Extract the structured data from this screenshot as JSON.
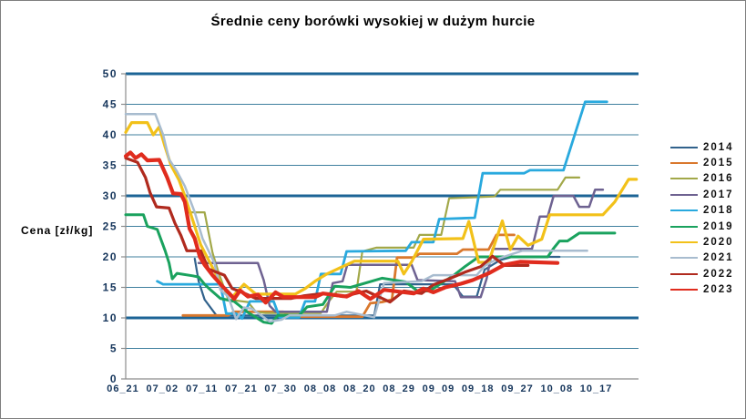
{
  "title": "Średnie ceny borówki wysokiej w dużym hurcie",
  "y_axis_label": "Cena [zł/kg]",
  "frame_border_color": "#7f7f7f",
  "chart_data": {
    "type": "line",
    "title": "Średnie ceny borówki wysokiej w dużym hurcie",
    "xlabel": "",
    "ylabel": "Cena [zł/kg]",
    "ylim": [
      0,
      50
    ],
    "y_tick_step": 5,
    "y_ticks": [
      0,
      5,
      10,
      15,
      20,
      25,
      30,
      35,
      40,
      45,
      50
    ],
    "y_major_gridlines": [
      10,
      30,
      50
    ],
    "y_minor_gridlines": [
      5,
      15,
      20,
      25,
      35,
      40,
      45
    ],
    "grid": "horizontal",
    "legend_position": "right",
    "axis_color": "#8c8c8c",
    "major_grid_color": "#1c6496",
    "minor_grid_color": "#3f7f9e",
    "tick_label_color": "#16365c",
    "categories": [
      "06_21",
      "07_02",
      "07_11",
      "07_21",
      "07_30",
      "08_08",
      "08_20",
      "08_29",
      "09_09",
      "09_18",
      "09_27",
      "10_08",
      "10_17"
    ],
    "x_unit": "category-index (fractional positions between the 13 date labels)",
    "series": [
      {
        "name": "2014",
        "color": "#31628c",
        "width": 2.2,
        "points": [
          [
            1.75,
            19.7
          ],
          [
            1.85,
            16
          ],
          [
            2.0,
            13
          ],
          [
            2.3,
            10.4
          ],
          [
            6.3,
            10.4
          ],
          [
            6.45,
            15.5
          ],
          [
            8.3,
            15.5
          ],
          [
            8.55,
            13.5
          ],
          [
            8.9,
            13.5
          ],
          [
            9.1,
            17.9
          ],
          [
            9.5,
            19.5
          ],
          [
            9.8,
            20
          ],
          [
            11.0,
            20
          ]
        ]
      },
      {
        "name": "2015",
        "color": "#d9782d",
        "width": 2.8,
        "points": [
          [
            1.45,
            10.4
          ],
          [
            2.6,
            10.4
          ],
          [
            2.75,
            11
          ],
          [
            4.0,
            11
          ],
          [
            4.15,
            10.2
          ],
          [
            6.0,
            10.2
          ],
          [
            6.2,
            12.4
          ],
          [
            6.5,
            12.6
          ],
          [
            6.75,
            13
          ],
          [
            6.88,
            19.9
          ],
          [
            7.3,
            19.9
          ],
          [
            7.45,
            20.5
          ],
          [
            8.4,
            20.5
          ],
          [
            8.55,
            21.2
          ],
          [
            9.2,
            21.2
          ],
          [
            9.4,
            23.6
          ],
          [
            9.85,
            23.6
          ]
        ]
      },
      {
        "name": "2016",
        "color": "#a2a849",
        "width": 2.2,
        "points": [
          [
            1.6,
            27.3
          ],
          [
            2.0,
            27.3
          ],
          [
            2.2,
            20.7
          ],
          [
            2.35,
            17.5
          ],
          [
            2.6,
            13
          ],
          [
            3.1,
            12.6
          ],
          [
            3.3,
            11
          ],
          [
            3.55,
            10.8
          ],
          [
            4.95,
            10.8
          ],
          [
            5.15,
            12.7
          ],
          [
            5.35,
            14.3
          ],
          [
            5.85,
            14.3
          ],
          [
            6.0,
            20.9
          ],
          [
            6.35,
            21.5
          ],
          [
            7.3,
            21.5
          ],
          [
            7.45,
            23.6
          ],
          [
            8.0,
            23.6
          ],
          [
            8.2,
            29.6
          ],
          [
            9.35,
            29.9
          ],
          [
            9.5,
            31
          ],
          [
            10.95,
            31
          ],
          [
            11.15,
            33
          ],
          [
            11.5,
            33
          ]
        ]
      },
      {
        "name": "2017",
        "color": "#6e6291",
        "width": 2.5,
        "points": [
          [
            1.85,
            19
          ],
          [
            3.35,
            19
          ],
          [
            3.5,
            16.2
          ],
          [
            3.65,
            12
          ],
          [
            3.8,
            11
          ],
          [
            5.1,
            11
          ],
          [
            5.25,
            15.7
          ],
          [
            5.5,
            16
          ],
          [
            5.62,
            18.7
          ],
          [
            7.25,
            18.7
          ],
          [
            7.4,
            16.2
          ],
          [
            8.35,
            16
          ],
          [
            8.5,
            13.4
          ],
          [
            9.0,
            13.4
          ],
          [
            9.15,
            16.4
          ],
          [
            9.3,
            21.3
          ],
          [
            10.3,
            21.3
          ],
          [
            10.5,
            26.6
          ],
          [
            10.7,
            26.6
          ],
          [
            10.85,
            30
          ],
          [
            11.35,
            30
          ],
          [
            11.5,
            28.2
          ],
          [
            11.75,
            28.2
          ],
          [
            11.9,
            31
          ],
          [
            12.1,
            31
          ]
        ]
      },
      {
        "name": "2018",
        "color": "#29a9de",
        "width": 2.8,
        "points": [
          [
            0.8,
            16
          ],
          [
            0.95,
            15.5
          ],
          [
            2.4,
            15.5
          ],
          [
            2.55,
            10.7
          ],
          [
            2.8,
            10.7
          ],
          [
            2.95,
            9.9
          ],
          [
            3.15,
            12.7
          ],
          [
            3.75,
            12.7
          ],
          [
            3.9,
            10.1
          ],
          [
            4.4,
            10.1
          ],
          [
            4.55,
            12.7
          ],
          [
            4.8,
            12.7
          ],
          [
            4.95,
            17.2
          ],
          [
            5.45,
            17.2
          ],
          [
            5.6,
            20.9
          ],
          [
            7.1,
            21
          ],
          [
            7.25,
            22.4
          ],
          [
            7.8,
            22.4
          ],
          [
            7.95,
            26.2
          ],
          [
            8.85,
            26.4
          ],
          [
            9.05,
            33.7
          ],
          [
            10.1,
            33.7
          ],
          [
            10.25,
            34.2
          ],
          [
            11.1,
            34.2
          ],
          [
            11.65,
            45.4
          ],
          [
            12.2,
            45.4
          ]
        ]
      },
      {
        "name": "2019",
        "color": "#1aa25e",
        "width": 3.0,
        "points": [
          [
            0,
            26.9
          ],
          [
            0.45,
            26.9
          ],
          [
            0.55,
            25
          ],
          [
            0.8,
            24.5
          ],
          [
            1.0,
            21
          ],
          [
            1.1,
            19
          ],
          [
            1.18,
            16.4
          ],
          [
            1.3,
            17.3
          ],
          [
            1.7,
            16.9
          ],
          [
            1.85,
            16.7
          ],
          [
            2.0,
            15.5
          ],
          [
            2.1,
            14.9
          ],
          [
            2.4,
            13.2
          ],
          [
            2.75,
            12.7
          ],
          [
            3.1,
            10.9
          ],
          [
            3.5,
            9.3
          ],
          [
            3.7,
            9.1
          ],
          [
            3.85,
            10.4
          ],
          [
            4.4,
            10.4
          ],
          [
            4.6,
            11.8
          ],
          [
            5.0,
            12.2
          ],
          [
            5.3,
            15.2
          ],
          [
            5.7,
            15
          ],
          [
            6.5,
            16.5
          ],
          [
            7.1,
            15.9
          ],
          [
            7.4,
            14.4
          ],
          [
            7.7,
            14.4
          ],
          [
            8.3,
            16.9
          ],
          [
            8.6,
            18.4
          ],
          [
            8.95,
            20
          ],
          [
            10.7,
            20
          ],
          [
            10.85,
            21.4
          ],
          [
            11.0,
            22.6
          ],
          [
            11.2,
            22.6
          ],
          [
            11.5,
            23.9
          ],
          [
            12.4,
            23.9
          ]
        ]
      },
      {
        "name": "2020",
        "color": "#f2c119",
        "width": 3.2,
        "points": [
          [
            0,
            40.4
          ],
          [
            0.15,
            42
          ],
          [
            0.55,
            42
          ],
          [
            0.7,
            40
          ],
          [
            0.85,
            41.3
          ],
          [
            1.0,
            38
          ],
          [
            1.15,
            35
          ],
          [
            1.35,
            32.6
          ],
          [
            1.5,
            30
          ],
          [
            1.7,
            26
          ],
          [
            1.9,
            22
          ],
          [
            2.1,
            19.5
          ],
          [
            2.45,
            15.2
          ],
          [
            2.7,
            13.4
          ],
          [
            3.0,
            15.5
          ],
          [
            3.3,
            13.9
          ],
          [
            4.3,
            13.9
          ],
          [
            4.55,
            14.8
          ],
          [
            4.8,
            16
          ],
          [
            5.1,
            17.2
          ],
          [
            5.5,
            18.4
          ],
          [
            5.8,
            19.3
          ],
          [
            6.9,
            19.3
          ],
          [
            7.05,
            17.2
          ],
          [
            7.25,
            19.2
          ],
          [
            7.55,
            22.9
          ],
          [
            8.55,
            23
          ],
          [
            8.7,
            25.8
          ],
          [
            8.95,
            19.1
          ],
          [
            9.2,
            19.1
          ],
          [
            9.55,
            25.9
          ],
          [
            9.75,
            21.2
          ],
          [
            9.95,
            23.4
          ],
          [
            10.2,
            21.9
          ],
          [
            10.55,
            22.9
          ],
          [
            10.75,
            26.9
          ],
          [
            12.1,
            26.9
          ],
          [
            12.4,
            29
          ],
          [
            12.75,
            32.7
          ],
          [
            12.95,
            32.7
          ]
        ]
      },
      {
        "name": "2021",
        "color": "#a8bccf",
        "width": 2.5,
        "points": [
          [
            0,
            43.4
          ],
          [
            0.75,
            43.4
          ],
          [
            0.95,
            40
          ],
          [
            1.1,
            36
          ],
          [
            1.3,
            34
          ],
          [
            1.5,
            31.6
          ],
          [
            1.75,
            27.3
          ],
          [
            1.95,
            23
          ],
          [
            2.25,
            19
          ],
          [
            2.4,
            14.6
          ],
          [
            2.6,
            13.5
          ],
          [
            2.8,
            9.8
          ],
          [
            3.0,
            11.7
          ],
          [
            3.2,
            11.5
          ],
          [
            3.65,
            9.4
          ],
          [
            3.95,
            9.7
          ],
          [
            4.15,
            10.4
          ],
          [
            5.3,
            10.4
          ],
          [
            5.6,
            11
          ],
          [
            6.3,
            10.1
          ],
          [
            6.55,
            15.7
          ],
          [
            7.5,
            16
          ],
          [
            7.8,
            17
          ],
          [
            8.9,
            17
          ],
          [
            9.1,
            18.5
          ],
          [
            9.4,
            19.6
          ],
          [
            10.05,
            21
          ],
          [
            11.7,
            21
          ]
        ]
      },
      {
        "name": "2022",
        "color": "#b02a1e",
        "width": 3.2,
        "points": [
          [
            0,
            36.2
          ],
          [
            0.3,
            35.5
          ],
          [
            0.5,
            33
          ],
          [
            0.62,
            30.5
          ],
          [
            0.78,
            28.2
          ],
          [
            1.1,
            28
          ],
          [
            1.25,
            25.5
          ],
          [
            1.4,
            23.5
          ],
          [
            1.55,
            21
          ],
          [
            1.9,
            21
          ],
          [
            2.1,
            18
          ],
          [
            2.5,
            17
          ],
          [
            2.7,
            14.8
          ],
          [
            2.95,
            14.2
          ],
          [
            3.3,
            13.2
          ],
          [
            4.2,
            13.2
          ],
          [
            4.5,
            13.6
          ],
          [
            5.0,
            14
          ],
          [
            5.5,
            13.5
          ],
          [
            6.1,
            14.4
          ],
          [
            6.7,
            12.6
          ],
          [
            7.05,
            14.4
          ],
          [
            7.5,
            14
          ],
          [
            7.8,
            15.4
          ],
          [
            8.2,
            16.4
          ],
          [
            8.6,
            17.5
          ],
          [
            9.0,
            18.4
          ],
          [
            9.3,
            20.1
          ],
          [
            9.6,
            18.6
          ],
          [
            10.2,
            18.6
          ]
        ]
      },
      {
        "name": "2023",
        "color": "#e02c1e",
        "width": 4.2,
        "points": [
          [
            0,
            36.5
          ],
          [
            0.12,
            37.1
          ],
          [
            0.25,
            36.2
          ],
          [
            0.4,
            36.8
          ],
          [
            0.55,
            35.8
          ],
          [
            0.85,
            35.9
          ],
          [
            1.05,
            33
          ],
          [
            1.2,
            30.4
          ],
          [
            1.4,
            30.3
          ],
          [
            1.5,
            29
          ],
          [
            1.62,
            24.6
          ],
          [
            1.75,
            23
          ],
          [
            1.88,
            20
          ],
          [
            2.0,
            18.7
          ],
          [
            2.2,
            17
          ],
          [
            2.45,
            15.2
          ],
          [
            2.6,
            14.2
          ],
          [
            2.75,
            13.1
          ],
          [
            2.9,
            14.5
          ],
          [
            3.1,
            13.5
          ],
          [
            3.35,
            13.8
          ],
          [
            3.55,
            12.5
          ],
          [
            3.8,
            14.2
          ],
          [
            4.0,
            13.4
          ],
          [
            4.8,
            13.4
          ],
          [
            5.0,
            14
          ],
          [
            5.6,
            13.5
          ],
          [
            5.9,
            14.4
          ],
          [
            6.2,
            13.1
          ],
          [
            6.55,
            14.6
          ],
          [
            7.3,
            14
          ],
          [
            7.55,
            14.8
          ],
          [
            7.8,
            14.2
          ],
          [
            8.1,
            15
          ],
          [
            8.5,
            15.6
          ],
          [
            8.8,
            16.2
          ],
          [
            9.2,
            17.3
          ],
          [
            9.6,
            18.7
          ],
          [
            10.0,
            19.2
          ],
          [
            10.95,
            19
          ]
        ]
      }
    ]
  },
  "legend": {
    "entries": [
      "2014",
      "2015",
      "2016",
      "2017",
      "2018",
      "2019",
      "2020",
      "2021",
      "2022",
      "2023"
    ]
  }
}
